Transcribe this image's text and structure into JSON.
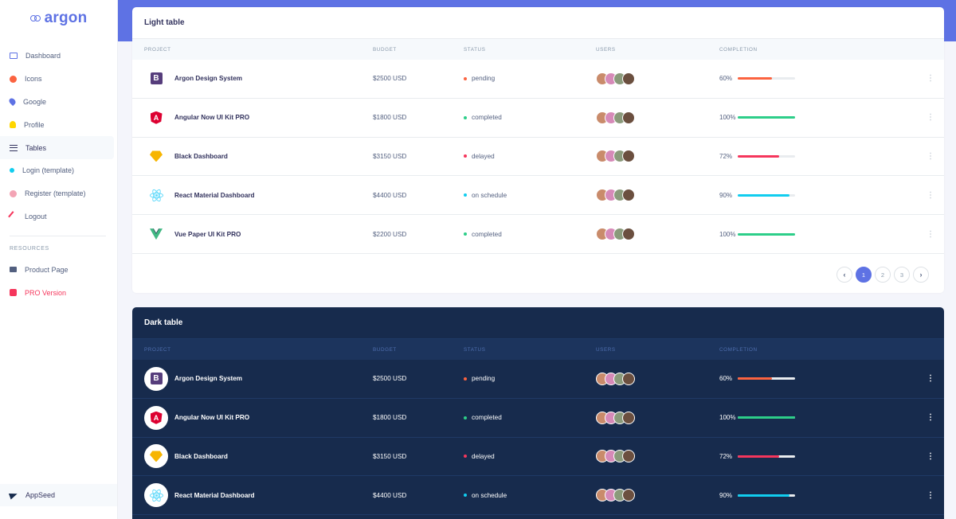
{
  "brand": {
    "name": "argon"
  },
  "sidebar": {
    "items": [
      {
        "label": "Dashboard",
        "icon": "tv-icon"
      },
      {
        "label": "Icons",
        "icon": "planet-icon"
      },
      {
        "label": "Google",
        "icon": "pin-icon"
      },
      {
        "label": "Profile",
        "icon": "user-icon"
      },
      {
        "label": "Tables",
        "icon": "bullet-list-icon"
      },
      {
        "label": "Login (template)",
        "icon": "key-icon"
      },
      {
        "label": "Register (template)",
        "icon": "circle-icon"
      },
      {
        "label": "Logout",
        "icon": "spaceship-icon"
      }
    ],
    "resources_heading": "RESOURCES",
    "resources": [
      {
        "label": "Product Page",
        "icon": "briefcase-icon"
      },
      {
        "label": "PRO Version",
        "icon": "palette-icon"
      }
    ],
    "footer": {
      "label": "AppSeed",
      "icon": "send-icon"
    }
  },
  "columns": {
    "project": "PROJECT",
    "budget": "BUDGET",
    "status": "STATUS",
    "users": "USERS",
    "completion": "COMPLETION"
  },
  "colors": {
    "accent": "#5e72e4",
    "warning": "#fb6340",
    "success": "#2dce89",
    "danger": "#f5365c",
    "info": "#11cdef",
    "dark_bg": "#172b4d"
  },
  "light_table": {
    "title": "Light table",
    "rows": [
      {
        "project": "Argon Design System",
        "budget": "$2500 USD",
        "status": "pending",
        "completion": "60%"
      },
      {
        "project": "Angular Now UI Kit PRO",
        "budget": "$1800 USD",
        "status": "completed",
        "completion": "100%"
      },
      {
        "project": "Black Dashboard",
        "budget": "$3150 USD",
        "status": "delayed",
        "completion": "72%"
      },
      {
        "project": "React Material Dashboard",
        "budget": "$4400 USD",
        "status": "on schedule",
        "completion": "90%"
      },
      {
        "project": "Vue Paper UI Kit PRO",
        "budget": "$2200 USD",
        "status": "completed",
        "completion": "100%"
      }
    ],
    "pagination": {
      "prev": "‹",
      "pages": [
        "1",
        "2",
        "3"
      ],
      "next": "›",
      "active": "1"
    }
  },
  "dark_table": {
    "title": "Dark table",
    "rows": [
      {
        "project": "Argon Design System",
        "budget": "$2500 USD",
        "status": "pending",
        "completion": "60%"
      },
      {
        "project": "Angular Now UI Kit PRO",
        "budget": "$1800 USD",
        "status": "completed",
        "completion": "100%"
      },
      {
        "project": "Black Dashboard",
        "budget": "$3150 USD",
        "status": "delayed",
        "completion": "72%"
      },
      {
        "project": "React Material Dashboard",
        "budget": "$4400 USD",
        "status": "on schedule",
        "completion": "90%"
      }
    ]
  },
  "logo_letters": {
    "bootstrap": "B",
    "angular": "A"
  },
  "kebab": "⋮"
}
